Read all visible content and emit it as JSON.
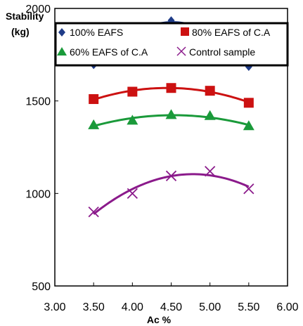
{
  "chart_data": {
    "type": "scatter",
    "title": "",
    "xlabel": "Ac %",
    "ylabel": "Stability",
    "ylabel_unit": "(kg)",
    "xlim": [
      3.0,
      6.0
    ],
    "ylim": [
      500,
      2000
    ],
    "x_ticks": [
      "3.00",
      "3.50",
      "4.00",
      "4.50",
      "5.00",
      "5.50",
      "6.00"
    ],
    "y_ticks": [
      "500",
      "1000",
      "1500",
      "2000"
    ],
    "grid": false,
    "legend_position": "top",
    "series": [
      {
        "name": "100% EAFS",
        "marker": "diamond",
        "color": "#1f3c88",
        "x": [
          3.5,
          4.0,
          4.5,
          5.0,
          5.5
        ],
        "y": [
          1695,
          1830,
          1935,
          1890,
          1685
        ]
      },
      {
        "name": "80% EAFS of C.A",
        "marker": "square",
        "color": "#cc1111",
        "x": [
          3.5,
          4.0,
          4.5,
          5.0,
          5.5
        ],
        "y": [
          1510,
          1550,
          1570,
          1555,
          1490
        ]
      },
      {
        "name": "60% EAFS of C.A",
        "marker": "triangle",
        "color": "#1a9a3a",
        "x": [
          3.5,
          4.0,
          4.5,
          5.0,
          5.5
        ],
        "y": [
          1370,
          1395,
          1425,
          1420,
          1365
        ]
      },
      {
        "name": "Control sample",
        "marker": "x",
        "color": "#8b1a8b",
        "x": [
          3.5,
          4.0,
          4.5,
          5.0,
          5.5
        ],
        "y": [
          900,
          1000,
          1095,
          1120,
          1025
        ]
      }
    ]
  }
}
